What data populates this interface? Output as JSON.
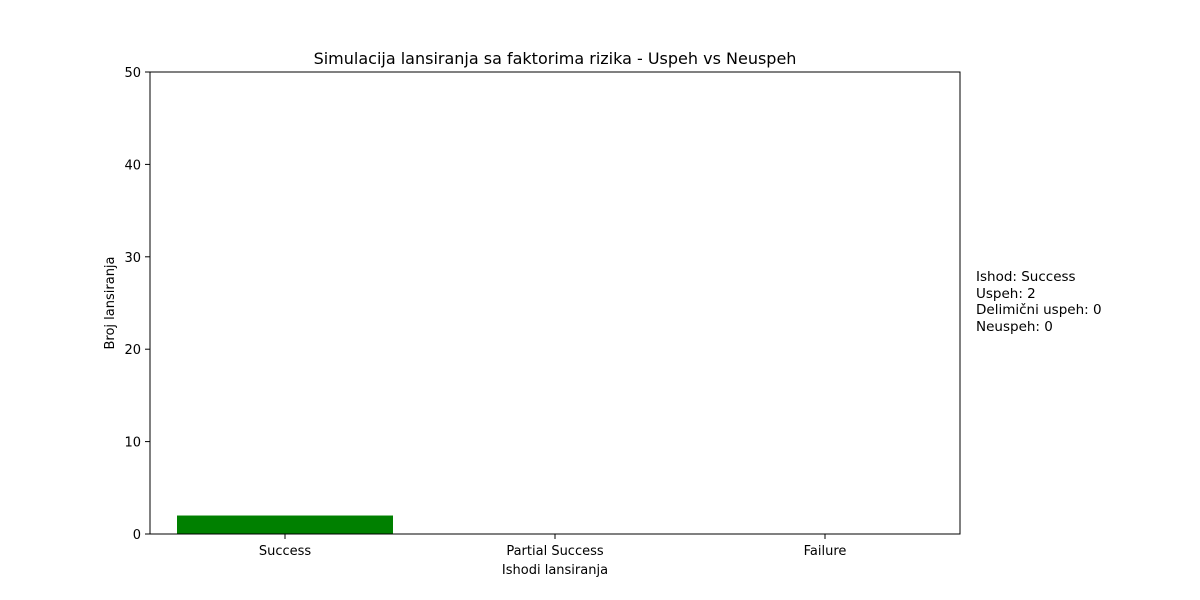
{
  "chart_data": {
    "type": "bar",
    "title": "Simulacija lansiranja sa faktorima rizika - Uspeh vs Neuspeh",
    "xlabel": "Ishodi lansiranja",
    "ylabel": "Broj lansiranja",
    "categories": [
      "Success",
      "Partial Success",
      "Failure"
    ],
    "values": [
      2,
      0,
      0
    ],
    "colors": [
      "#008000",
      "#ffa500",
      "#ff0000"
    ],
    "ylim": [
      0,
      50
    ],
    "yticks": [
      0,
      10,
      20,
      30,
      40,
      50
    ],
    "grid": false,
    "legend": "none"
  },
  "annotation": {
    "outcome": "Ishod: Success",
    "success": "Uspeh: 2",
    "partial": "Delimični uspeh: 0",
    "failure": "Neuspeh: 0"
  }
}
